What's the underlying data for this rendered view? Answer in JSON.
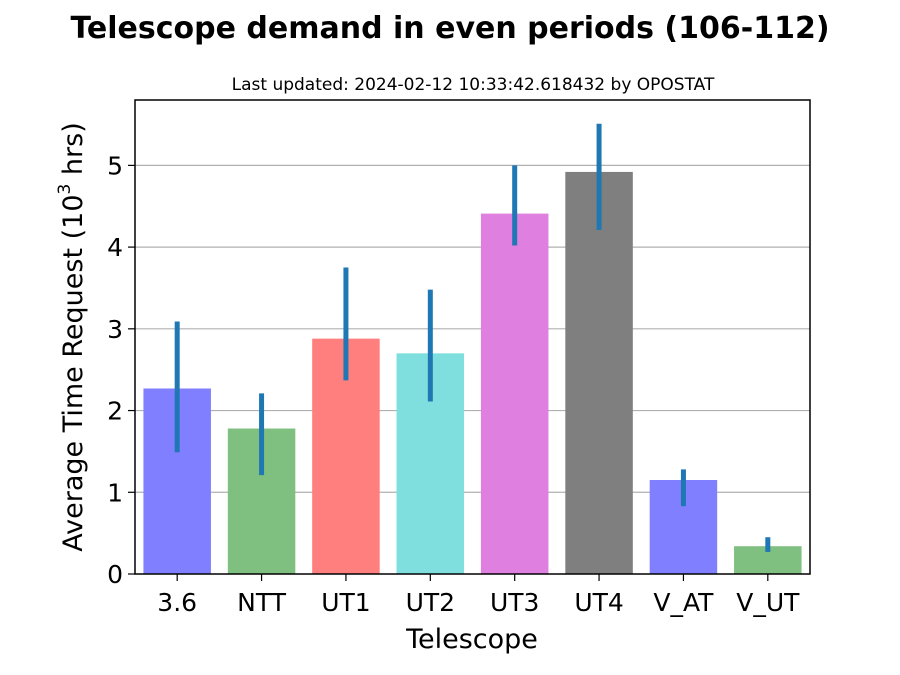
{
  "chart_data": {
    "type": "bar",
    "title": "Telescope demand in even periods (106-112)",
    "subtitle": "Last updated: 2024-02-12 10:33:42.618432 by OPOSTAT",
    "xlabel": "Telescope",
    "ylabel_main": "Average Time Request (10",
    "ylabel_sup": "3",
    "ylabel_tail": " hrs)",
    "categories": [
      "3.6",
      "NTT",
      "UT1",
      "UT2",
      "UT3",
      "UT4",
      "V_AT",
      "V_UT"
    ],
    "values": [
      2.27,
      1.78,
      2.88,
      2.7,
      4.41,
      4.92,
      1.15,
      0.34
    ],
    "error_low": [
      1.49,
      1.21,
      2.37,
      2.11,
      4.02,
      4.21,
      0.83,
      0.27
    ],
    "error_high": [
      3.09,
      2.21,
      3.75,
      3.48,
      5.0,
      5.51,
      1.28,
      0.45
    ],
    "bar_colors": [
      "#7f7fff",
      "#7fbf7f",
      "#ff7f7f",
      "#7fdfdf",
      "#df7fdf",
      "#7f7f7f",
      "#7f7fff",
      "#7fbf7f"
    ],
    "error_color": "#1f77b4",
    "ylim": [
      0,
      5.8
    ],
    "yticks": [
      0,
      1,
      2,
      3,
      4,
      5
    ],
    "grid": true
  }
}
